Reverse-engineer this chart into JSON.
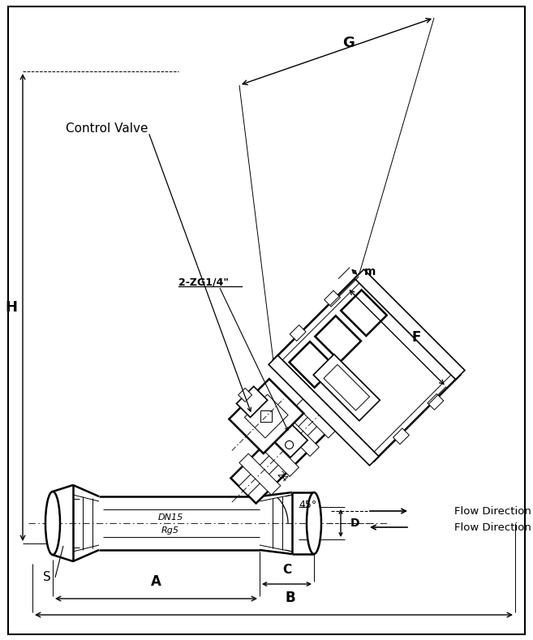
{
  "bg_color": "#ffffff",
  "line_color": "#000000",
  "figsize": [
    6.57,
    7.89
  ],
  "dpi": 100,
  "labels": {
    "G": "G",
    "F": "F",
    "m": "m",
    "H": "H",
    "A": "A",
    "B": "B",
    "C": "C",
    "D": "D",
    "S": "S",
    "angle": "45°",
    "port": "2-ZG1/4\"",
    "size_top": "DN15",
    "size_bot": "Rg5",
    "control_valve": "Control Valve",
    "flow_a": "Flow Direction A",
    "flow_b": "Flow Direction B"
  }
}
